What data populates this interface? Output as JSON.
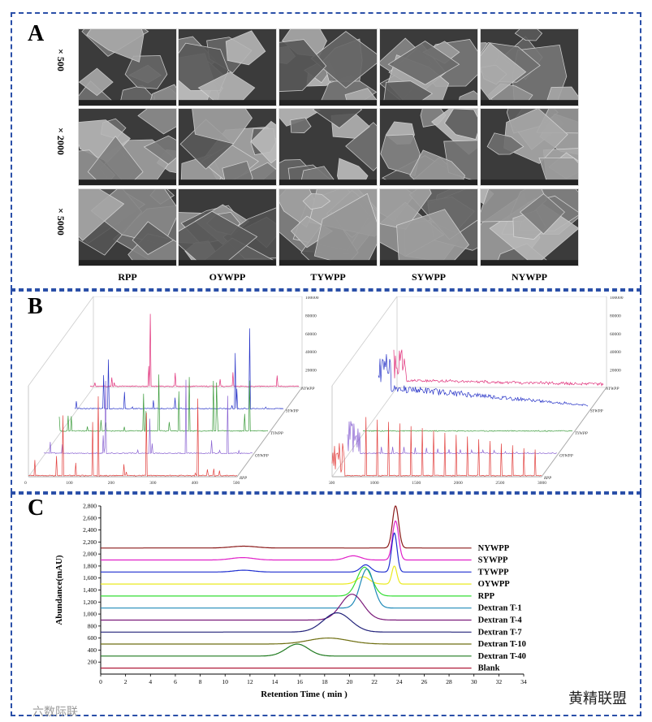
{
  "panels": {
    "a_label": "A",
    "b_label": "B",
    "c_label": "C"
  },
  "sem": {
    "magnifications": [
      "× 500",
      "× 2000",
      "× 5000"
    ],
    "samples": [
      "RPP",
      "OYWPP",
      "TYWPP",
      "SYWPP",
      "NYWPP"
    ]
  },
  "spectra_left": {
    "x_ticks": [
      "0",
      "100",
      "200",
      "300",
      "400",
      "500"
    ],
    "z_ticks": [
      "20000",
      "40000",
      "60000",
      "80000",
      "100000"
    ],
    "series": [
      "RPP",
      "OYWPP",
      "TYWPP",
      "SYWPP",
      "NYWPP"
    ],
    "colors": [
      "#e2403e",
      "#8a63d2",
      "#3b9b3b",
      "#2a36c8",
      "#e0307a"
    ]
  },
  "spectra_right": {
    "x_ticks": [
      "500",
      "1000",
      "1500",
      "2000",
      "2500",
      "3000"
    ],
    "z_ticks": [
      "20000",
      "40000",
      "60000",
      "80000",
      "100000"
    ],
    "series": [
      "RPP",
      "OYWPP",
      "TYWPP",
      "SYWPP",
      "NYWPP"
    ]
  },
  "chart_data": {
    "type": "line",
    "xlabel": "Retention Time ( min )",
    "ylabel": "Abundance(mAU)",
    "xlim": [
      0,
      34
    ],
    "ylim": [
      0,
      2800
    ],
    "x_ticks": [
      0,
      2,
      4,
      6,
      8,
      10,
      12,
      14,
      16,
      18,
      20,
      22,
      24,
      26,
      28,
      30,
      32,
      34
    ],
    "y_ticks": [
      200,
      400,
      600,
      800,
      1000,
      1200,
      1400,
      1600,
      1800,
      2000,
      2200,
      2400,
      2600,
      2800
    ],
    "series": [
      {
        "name": "NYWPP",
        "baseline": 2100,
        "color": "#8b1a1a",
        "peaks": [
          [
            23.7,
            700,
            0.25
          ],
          [
            11.5,
            30,
            1.0
          ]
        ]
      },
      {
        "name": "SYWPP",
        "baseline": 1900,
        "color": "#e020c8",
        "peaks": [
          [
            23.7,
            650,
            0.25
          ],
          [
            20.3,
            70,
            0.6
          ],
          [
            11.4,
            40,
            0.9
          ]
        ]
      },
      {
        "name": "TYWPP",
        "baseline": 1700,
        "color": "#1f2fd0",
        "peaks": [
          [
            23.6,
            650,
            0.22
          ],
          [
            21.3,
            120,
            0.4
          ],
          [
            11.5,
            30,
            0.8
          ]
        ]
      },
      {
        "name": "OYWPP",
        "baseline": 1500,
        "color": "#eaea20",
        "peaks": [
          [
            23.6,
            300,
            0.2
          ],
          [
            21.1,
            120,
            0.5
          ]
        ]
      },
      {
        "name": "RPP",
        "baseline": 1300,
        "color": "#33dd33",
        "peaks": [
          [
            21.2,
            480,
            0.6
          ]
        ]
      },
      {
        "name": "Dextran T-1",
        "baseline": 1100,
        "color": "#1f8ab8",
        "peaks": [
          [
            21.4,
            650,
            0.55
          ]
        ]
      },
      {
        "name": "Dextran T-4",
        "baseline": 900,
        "color": "#7a1a7a",
        "peaks": [
          [
            20.2,
            430,
            0.9
          ]
        ]
      },
      {
        "name": "Dextran T-7",
        "baseline": 700,
        "color": "#22227a",
        "peaks": [
          [
            19.0,
            320,
            1.1
          ]
        ]
      },
      {
        "name": "Dextran T-10",
        "baseline": 500,
        "color": "#6e6e10",
        "peaks": [
          [
            18.3,
            100,
            1.6
          ]
        ]
      },
      {
        "name": "Dextran T-40",
        "baseline": 300,
        "color": "#1f7a1f",
        "peaks": [
          [
            15.8,
            200,
            0.9
          ]
        ]
      },
      {
        "name": "Blank",
        "baseline": 100,
        "color": "#b01a3a",
        "peaks": []
      }
    ]
  },
  "watermarks": {
    "left": "六数际联",
    "right": "黄精联盟"
  }
}
